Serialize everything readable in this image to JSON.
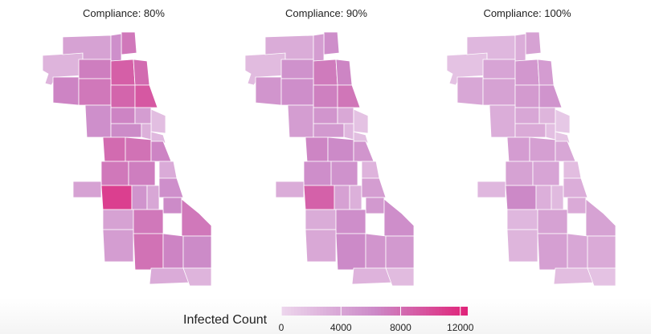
{
  "panels": [
    {
      "title": "Compliance: 80%",
      "level": 0.62
    },
    {
      "title": "Compliance: 90%",
      "level": 0.5
    },
    {
      "title": "Compliance: 100%",
      "level": 0.36
    }
  ],
  "legend": {
    "title": "Infected Count",
    "min": 0,
    "max": 12500,
    "ticks": [
      "0",
      "4000",
      "8000",
      "12000"
    ],
    "tick_values": [
      0,
      4000,
      8000,
      12000
    ],
    "color_low": "#ecd5ec",
    "color_mid": "#cc8ac8",
    "color_high": "#e0247a"
  }
}
